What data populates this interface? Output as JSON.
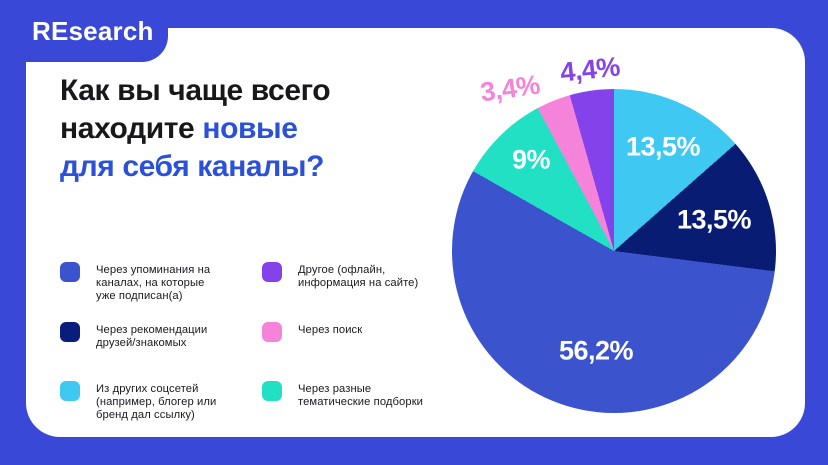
{
  "brand": {
    "logo": "REsearch"
  },
  "title": {
    "line1_black": "Как вы чаще всего",
    "line2_black": "находите",
    "line2_blue": "новые",
    "line3_blue": "для себя каналы?",
    "accent_color": "#2B51D8"
  },
  "legend": {
    "items": [
      {
        "label": "Через упоминания на\nканалах, на которые\nуже подписан(а)",
        "color": "#3C53CE"
      },
      {
        "label": "Через рекомендации\nдрузей/знакомых",
        "color": "#0A1C7C"
      },
      {
        "label": "Из других соцсетей\n(например, блогер или\nбренд дал ссылку)",
        "color": "#3EC8F2"
      },
      {
        "label": "Другое (офлайн,\nинформация на сайте)",
        "color": "#8443EA"
      },
      {
        "label": "Через поиск",
        "color": "#F583D9"
      },
      {
        "label": "Через разные\nтематические подборки",
        "color": "#21E0C3"
      }
    ]
  },
  "chart_data": {
    "type": "pie",
    "title": "Как вы чаще всего находите новые для себя каналы?",
    "direction": "clockwise",
    "start_angle_deg": 0,
    "legend_position": "left",
    "segments": [
      {
        "label": "Из других соцсетей (например, блогер или бренд дал ссылку)",
        "value": 13.5,
        "display": "13,5%",
        "color": "#3EC8F2"
      },
      {
        "label": "Через рекомендации друзей/знакомых",
        "value": 13.5,
        "display": "13,5%",
        "color": "#081C74"
      },
      {
        "label": "Через упоминания на каналах, на которые уже подписан(а)",
        "value": 56.2,
        "display": "56,2%",
        "color": "#3C53CE"
      },
      {
        "label": "Через разные тематические подборки",
        "value": 9,
        "display": "9%",
        "color": "#21E0C3"
      },
      {
        "label": "Через поиск",
        "value": 3.4,
        "display": "3,4%",
        "color": "#F583D9"
      },
      {
        "label": "Другое (офлайн, информация на сайте)",
        "value": 4.4,
        "display": "4,4%",
        "color": "#8443EA"
      }
    ]
  },
  "colors": {
    "background": "#3A48D7",
    "card": "#FFFFFF"
  }
}
